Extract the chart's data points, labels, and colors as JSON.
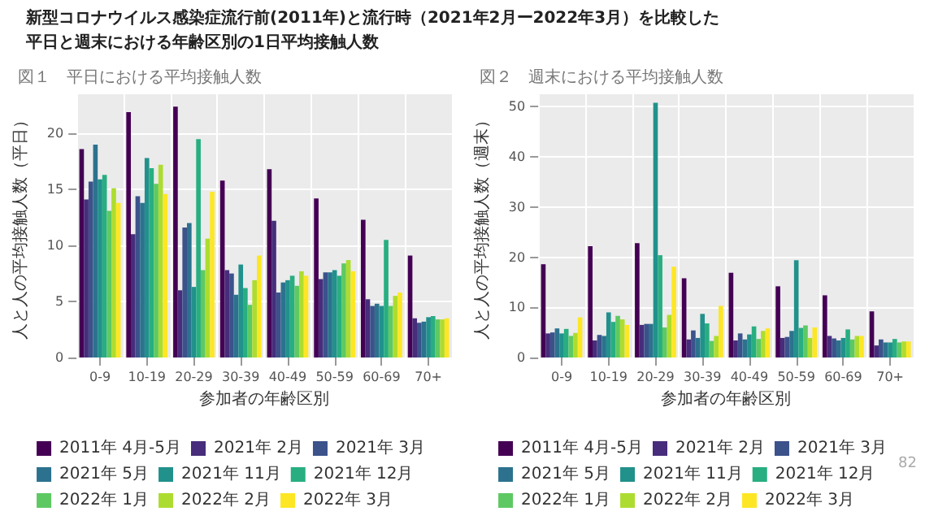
{
  "chart_data": [
    {
      "type": "bar",
      "title": "新型コロナウイルス感染症流行前(2011年)と流行時（2021年2月ー2022年3月）を比較した平日と週末における年齢区別の1日平均接触人数",
      "subtitle": "図１　平日における平均接触人数",
      "xlabel": "参加者の年齢区別",
      "ylabel": "人と人の平均接触人数（平日）",
      "categories": [
        "0-9",
        "10-19",
        "20-29",
        "30-39",
        "40-49",
        "50-59",
        "60-69",
        "70+"
      ],
      "ylim": [
        0,
        23.5
      ],
      "yticks": [
        0,
        5,
        10,
        15,
        20
      ],
      "grid": true,
      "legend": "bottom",
      "series": [
        {
          "name": "2011年 4月-5月",
          "color": "#440154",
          "values": [
            18.6,
            21.9,
            22.4,
            15.8,
            16.8,
            14.2,
            12.3,
            9.1
          ]
        },
        {
          "name": "2021年 2月",
          "color": "#472d7b",
          "values": [
            14.1,
            11.0,
            6.0,
            7.8,
            12.2,
            7.0,
            5.2,
            3.5
          ]
        },
        {
          "name": "2021年 3月",
          "color": "#3b528b",
          "values": [
            15.7,
            14.4,
            11.6,
            7.5,
            5.8,
            7.6,
            4.6,
            3.1
          ]
        },
        {
          "name": "2021年 5月",
          "color": "#2c728e",
          "values": [
            19.0,
            13.8,
            12.0,
            5.6,
            6.7,
            7.6,
            4.8,
            3.2
          ]
        },
        {
          "name": "2021年 11月",
          "color": "#21918c",
          "values": [
            15.9,
            17.8,
            6.3,
            8.3,
            6.9,
            7.8,
            4.6,
            3.6
          ]
        },
        {
          "name": "2021年 12月",
          "color": "#28ae80",
          "values": [
            16.3,
            16.9,
            19.5,
            6.2,
            7.3,
            7.3,
            10.5,
            3.7
          ]
        },
        {
          "name": "2022年 1月",
          "color": "#5ec962",
          "values": [
            13.1,
            15.5,
            7.8,
            4.7,
            6.4,
            8.4,
            4.6,
            3.4
          ]
        },
        {
          "name": "2022年 2月",
          "color": "#addc30",
          "values": [
            15.1,
            17.2,
            10.6,
            6.9,
            7.7,
            8.7,
            5.5,
            3.4
          ]
        },
        {
          "name": "2022年 3月",
          "color": "#fde725",
          "values": [
            13.8,
            14.6,
            14.8,
            9.1,
            7.3,
            7.7,
            5.8,
            3.5
          ]
        }
      ]
    },
    {
      "type": "bar",
      "subtitle": "図２　週末における平均接触人数",
      "xlabel": "参加者の年齢区別",
      "ylabel": "人と人の平均接触人数（週末）",
      "categories": [
        "0-9",
        "10-19",
        "20-29",
        "30-39",
        "40-49",
        "50-59",
        "60-69",
        "70+"
      ],
      "ylim": [
        0,
        52.5
      ],
      "yticks": [
        0,
        10,
        20,
        30,
        40,
        50
      ],
      "grid": true,
      "legend": "bottom",
      "annotations": [
        "82"
      ],
      "series": [
        {
          "name": "2011年 4月-5月",
          "color": "#440154",
          "values": [
            18.6,
            22.2,
            22.8,
            15.8,
            16.9,
            14.2,
            12.4,
            9.2
          ]
        },
        {
          "name": "2021年 2月",
          "color": "#472d7b",
          "values": [
            4.8,
            3.4,
            6.5,
            3.6,
            3.4,
            3.9,
            4.3,
            2.4
          ]
        },
        {
          "name": "2021年 3月",
          "color": "#3b528b",
          "values": [
            5.0,
            4.5,
            6.7,
            5.4,
            4.8,
            4.1,
            3.8,
            3.6
          ]
        },
        {
          "name": "2021年 5月",
          "color": "#2c728e",
          "values": [
            5.8,
            4.3,
            6.7,
            3.9,
            3.6,
            5.3,
            3.4,
            3.0
          ]
        },
        {
          "name": "2021年 11月",
          "color": "#21918c",
          "values": [
            4.8,
            9.0,
            50.8,
            8.7,
            4.6,
            19.4,
            3.9,
            3.0
          ]
        },
        {
          "name": "2021年 12月",
          "color": "#28ae80",
          "values": [
            5.7,
            7.1,
            20.4,
            6.8,
            6.2,
            5.9,
            5.6,
            3.7
          ]
        },
        {
          "name": "2022年 1月",
          "color": "#5ec962",
          "values": [
            4.3,
            8.3,
            6.0,
            3.3,
            3.7,
            6.4,
            3.6,
            3.0
          ]
        },
        {
          "name": "2022年 2月",
          "color": "#addc30",
          "values": [
            4.9,
            7.6,
            8.5,
            4.3,
            5.3,
            3.9,
            4.3,
            3.2
          ]
        },
        {
          "name": "2022年 3月",
          "color": "#fde725",
          "values": [
            8.0,
            6.5,
            18.1,
            10.3,
            5.8,
            6.0,
            4.3,
            3.2
          ]
        }
      ]
    }
  ]
}
